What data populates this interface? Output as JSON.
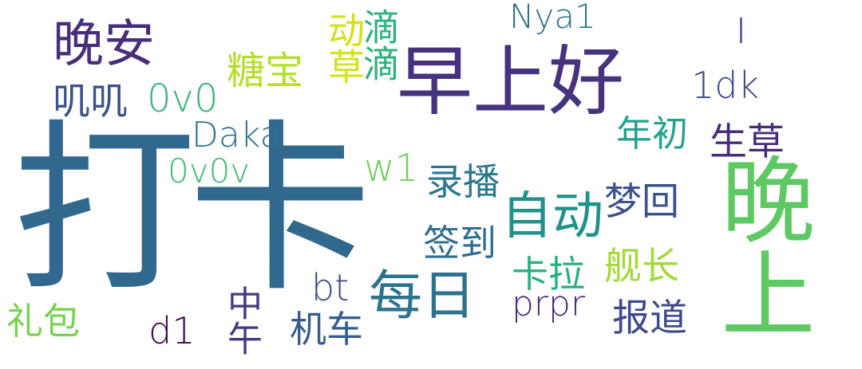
{
  "cloud": {
    "words": [
      {
        "id": "daka",
        "text": "打卡",
        "color": "#31688e"
      },
      {
        "id": "zaoshanghao",
        "text": "早上好",
        "color": "#46327e"
      },
      {
        "id": "wanshang",
        "text": "晚上",
        "color": "#5ec962"
      },
      {
        "id": "wanan",
        "text": "晚安",
        "color": "#472d7b"
      },
      {
        "id": "meiri",
        "text": "每日",
        "color": "#2c728e"
      },
      {
        "id": "zidong",
        "text": "自动",
        "color": "#21918c"
      },
      {
        "id": "nya1",
        "text": "Nya1",
        "color": "#2c718e"
      },
      {
        "id": "daka-en",
        "text": "Daka",
        "color": "#2c728e"
      },
      {
        "id": "tangbao",
        "text": "糖宝",
        "color": "#b5de2b"
      },
      {
        "id": "yongyong",
        "text": "叽叽",
        "color": "#3b528b"
      },
      {
        "id": "ovo",
        "text": "0v0",
        "color": "#35b779"
      },
      {
        "id": "ovovo",
        "text": "0v0v",
        "color": "#3fbc73"
      },
      {
        "id": "1dk",
        "text": "1dk",
        "color": "#3e4989"
      },
      {
        "id": "nianchu",
        "text": "年初",
        "color": "#25a18e"
      },
      {
        "id": "shengcao",
        "text": "生草",
        "color": "#472c7a"
      },
      {
        "id": "w1",
        "text": "w1",
        "color": "#6ece58"
      },
      {
        "id": "lubo",
        "text": "录播",
        "color": "#2a788e"
      },
      {
        "id": "menghui",
        "text": "梦回",
        "color": "#3b528b"
      },
      {
        "id": "qiandao",
        "text": "签到",
        "color": "#2e6e8e"
      },
      {
        "id": "kala",
        "text": "卡拉",
        "color": "#28ae80"
      },
      {
        "id": "jianzhang",
        "text": "舰长",
        "color": "#a2da37"
      },
      {
        "id": "prpr",
        "text": "prpr",
        "color": "#482878"
      },
      {
        "id": "baodao",
        "text": "报道",
        "color": "#3e4a89"
      },
      {
        "id": "bt",
        "text": "bt",
        "color": "#3e4989"
      },
      {
        "id": "jiche",
        "text": "机车",
        "color": "#365c8d"
      },
      {
        "id": "libao",
        "text": "礼包",
        "color": "#7ad151"
      },
      {
        "id": "d1",
        "text": "d1",
        "color": "#440154"
      },
      {
        "id": "zhongwu",
        "text": "中午",
        "color": "#443a83"
      },
      {
        "id": "yongcao",
        "text": "动草",
        "color": "#d2e21b"
      },
      {
        "id": "didi",
        "text": "滴滴",
        "color": "#2db27d"
      },
      {
        "id": "bar",
        "text": "I",
        "color": "#472f7d"
      }
    ]
  }
}
